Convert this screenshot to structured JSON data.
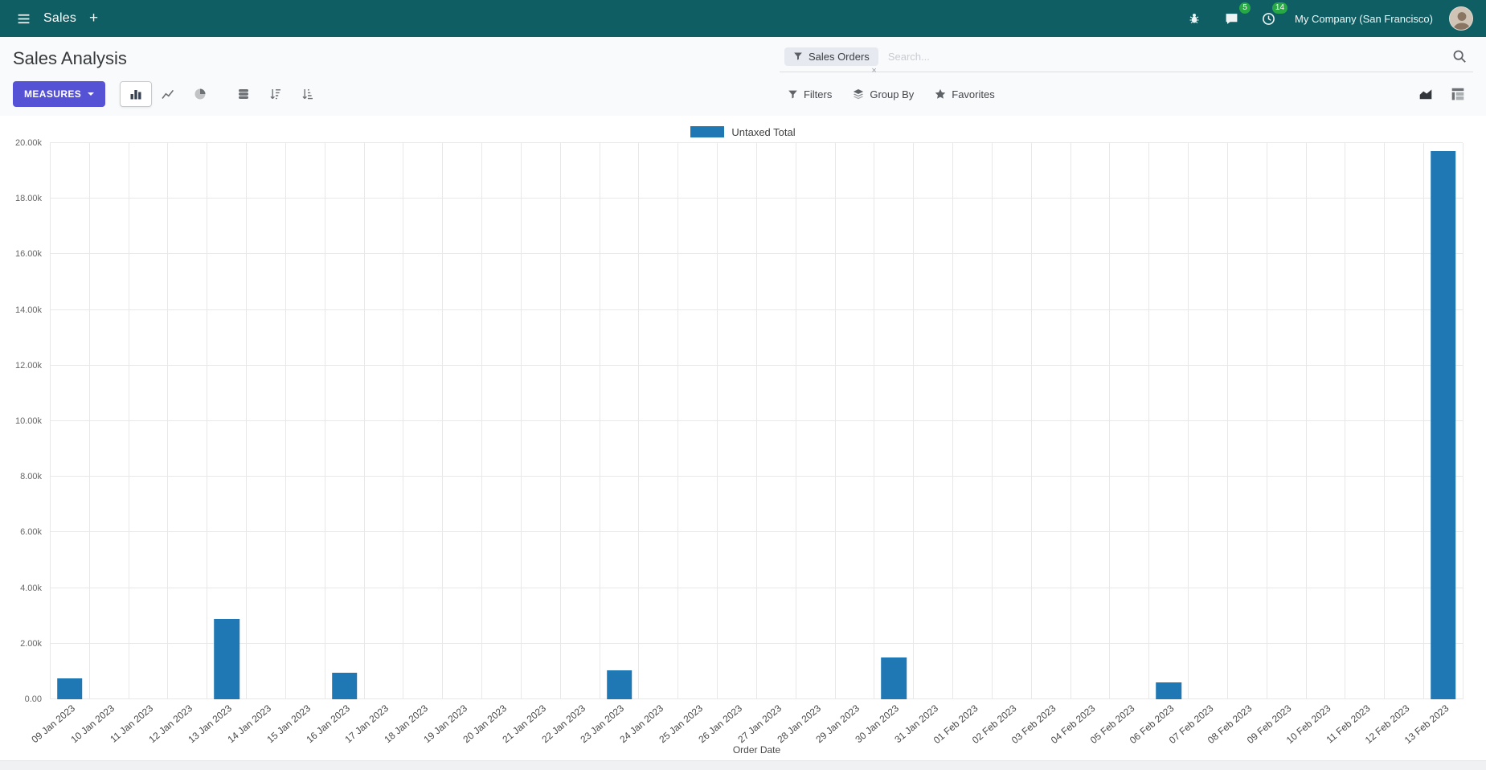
{
  "colors": {
    "navbar_bg": "#0e5e63",
    "accent": "#5552d6",
    "badge": "#28a745"
  },
  "navbar": {
    "app_name": "Sales",
    "plus": "+",
    "messages_count": "5",
    "activities_count": "14",
    "company": "My Company (San Francisco)"
  },
  "control_panel": {
    "title": "Sales Analysis",
    "measures_label": "Measures",
    "search": {
      "facet": "Sales Orders",
      "facet_remove": "×",
      "placeholder": "Search..."
    },
    "filters_label": "Filters",
    "group_by_label": "Group By",
    "favorites_label": "Favorites"
  },
  "chart_data": {
    "type": "bar",
    "title": "",
    "xlabel": "Order Date",
    "ylabel": "",
    "ylim": [
      0,
      20000
    ],
    "yticks": [
      "0.00",
      "2.00k",
      "4.00k",
      "6.00k",
      "8.00k",
      "10.00k",
      "12.00k",
      "14.00k",
      "16.00k",
      "18.00k",
      "20.00k"
    ],
    "grid": true,
    "legend_position": "top",
    "bar_color": "#1f77b4",
    "categories": [
      "09 Jan 2023",
      "10 Jan 2023",
      "11 Jan 2023",
      "12 Jan 2023",
      "13 Jan 2023",
      "14 Jan 2023",
      "15 Jan 2023",
      "16 Jan 2023",
      "17 Jan 2023",
      "18 Jan 2023",
      "19 Jan 2023",
      "20 Jan 2023",
      "21 Jan 2023",
      "22 Jan 2023",
      "23 Jan 2023",
      "24 Jan 2023",
      "25 Jan 2023",
      "26 Jan 2023",
      "27 Jan 2023",
      "28 Jan 2023",
      "29 Jan 2023",
      "30 Jan 2023",
      "31 Jan 2023",
      "01 Feb 2023",
      "02 Feb 2023",
      "03 Feb 2023",
      "04 Feb 2023",
      "05 Feb 2023",
      "06 Feb 2023",
      "07 Feb 2023",
      "08 Feb 2023",
      "09 Feb 2023",
      "10 Feb 2023",
      "11 Feb 2023",
      "12 Feb 2023",
      "13 Feb 2023"
    ],
    "series": [
      {
        "name": "Untaxed Total",
        "values": [
          750,
          0,
          0,
          0,
          2900,
          0,
          0,
          950,
          0,
          0,
          0,
          0,
          0,
          0,
          1050,
          0,
          0,
          0,
          0,
          0,
          0,
          1500,
          0,
          0,
          0,
          0,
          0,
          0,
          620,
          0,
          0,
          0,
          0,
          0,
          0,
          19700
        ]
      }
    ]
  }
}
